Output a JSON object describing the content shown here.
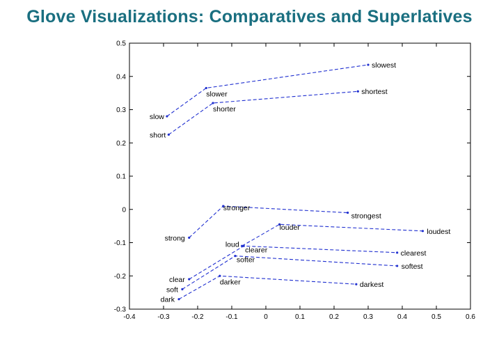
{
  "slide": {
    "title": "Glove Visualizations: Comparatives and Superlatives"
  },
  "chart_data": {
    "type": "scatter",
    "title": "",
    "xlabel": "",
    "ylabel": "",
    "xlim": [
      -0.4,
      0.6
    ],
    "ylim": [
      -0.3,
      0.5
    ],
    "x_ticks": [
      -0.4,
      -0.3,
      -0.2,
      -0.1,
      0,
      0.1,
      0.2,
      0.3,
      0.4,
      0.5,
      0.6
    ],
    "x_tick_labels": [
      "-0.4",
      "-0.3",
      "-0.2",
      "-0.1",
      "0",
      "0.1",
      "0.2",
      "0.3",
      "0.4",
      "0.5",
      "0.6"
    ],
    "y_ticks": [
      -0.3,
      -0.2,
      -0.1,
      0,
      0.1,
      0.2,
      0.3,
      0.4,
      0.5
    ],
    "y_tick_labels": [
      "-0.3",
      "-0.2",
      "-0.1",
      "0",
      "0.1",
      "0.2",
      "0.3",
      "0.4",
      "0.5"
    ],
    "grid": false,
    "line_color": "#1f2fd0",
    "line_style": "dashed",
    "series": [
      {
        "points": [
          {
            "label": "slow",
            "x": -0.29,
            "y": 0.28
          },
          {
            "label": "slower",
            "x": -0.175,
            "y": 0.365
          },
          {
            "label": "slowest",
            "x": 0.3,
            "y": 0.435
          }
        ]
      },
      {
        "points": [
          {
            "label": "short",
            "x": -0.285,
            "y": 0.225
          },
          {
            "label": "shorter",
            "x": -0.155,
            "y": 0.32
          },
          {
            "label": "shortest",
            "x": 0.27,
            "y": 0.355
          }
        ]
      },
      {
        "points": [
          {
            "label": "strong",
            "x": -0.225,
            "y": -0.085
          },
          {
            "label": "stronger",
            "x": -0.125,
            "y": 0.01
          },
          {
            "label": "strongest",
            "x": 0.24,
            "y": -0.01
          }
        ]
      },
      {
        "points": [
          {
            "label": "loud",
            "x": -0.07,
            "y": -0.11
          },
          {
            "label": "louder",
            "x": 0.04,
            "y": -0.045
          },
          {
            "label": "loudest",
            "x": 0.46,
            "y": -0.065
          }
        ]
      },
      {
        "points": [
          {
            "label": "clear",
            "x": -0.225,
            "y": -0.21
          },
          {
            "label": "clearer",
            "x": -0.065,
            "y": -0.11
          },
          {
            "label": "clearest",
            "x": 0.385,
            "y": -0.13
          }
        ]
      },
      {
        "points": [
          {
            "label": "soft",
            "x": -0.245,
            "y": -0.24
          },
          {
            "label": "softer",
            "x": -0.09,
            "y": -0.14
          },
          {
            "label": "softest",
            "x": 0.385,
            "y": -0.17
          }
        ]
      },
      {
        "points": [
          {
            "label": "dark",
            "x": -0.255,
            "y": -0.27
          },
          {
            "label": "darker",
            "x": -0.135,
            "y": -0.2
          },
          {
            "label": "darkest",
            "x": 0.265,
            "y": -0.225
          }
        ]
      }
    ]
  }
}
